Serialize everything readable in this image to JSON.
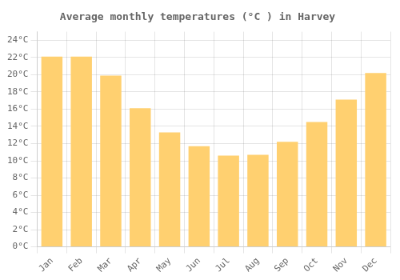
{
  "chart_data": {
    "type": "bar",
    "title": "Average monthly temperatures (°C ) in Harvey",
    "categories": [
      "Jan",
      "Feb",
      "Mar",
      "Apr",
      "May",
      "Jun",
      "Jul",
      "Aug",
      "Sep",
      "Oct",
      "Nov",
      "Dec"
    ],
    "values": [
      22.1,
      22.1,
      19.9,
      16.1,
      13.3,
      11.7,
      10.6,
      10.7,
      12.2,
      14.5,
      17.1,
      20.2
    ],
    "color": "#FFD070",
    "ylim": [
      0,
      25
    ],
    "yticks": [
      {
        "value": 0,
        "label": "0°C"
      },
      {
        "value": 2,
        "label": "2°C"
      },
      {
        "value": 4,
        "label": "4°C"
      },
      {
        "value": 6,
        "label": "6°C"
      },
      {
        "value": 8,
        "label": "8°C"
      },
      {
        "value": 10,
        "label": "10°C"
      },
      {
        "value": 12,
        "label": "12°C"
      },
      {
        "value": 14,
        "label": "14°C"
      },
      {
        "value": 16,
        "label": "16°C"
      },
      {
        "value": 18,
        "label": "18°C"
      },
      {
        "value": 20,
        "label": "20°C"
      },
      {
        "value": 22,
        "label": "22°C"
      },
      {
        "value": 24,
        "label": "24°C"
      }
    ],
    "grid": true
  }
}
